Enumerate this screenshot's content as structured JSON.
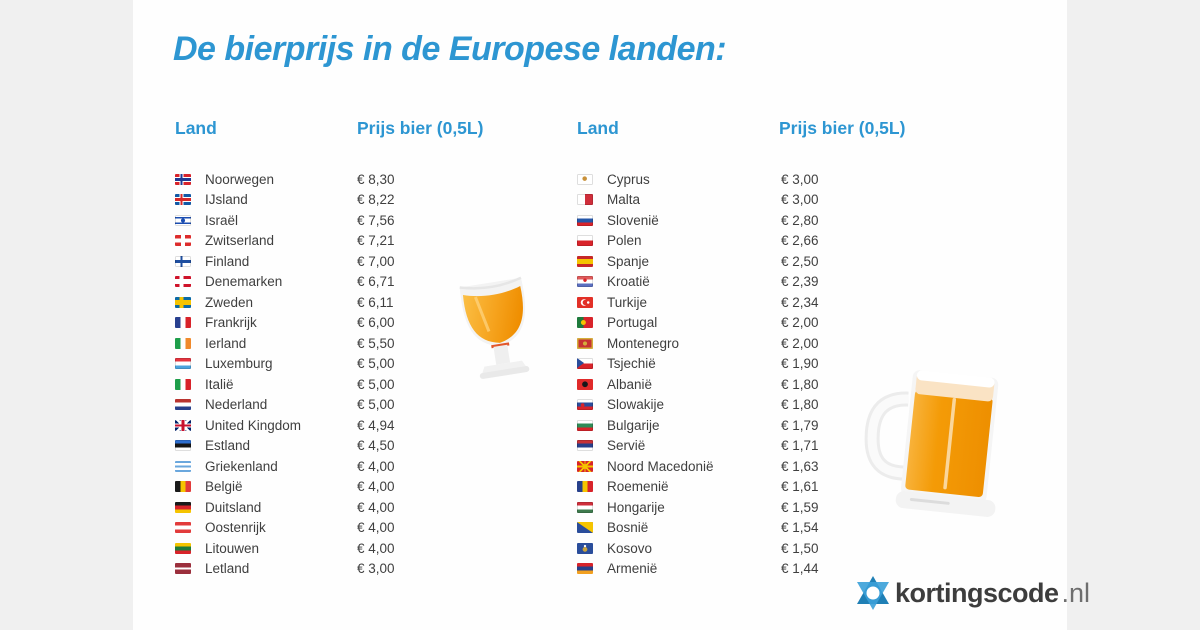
{
  "page": {
    "background_color": "#f0f0f0",
    "card_color": "#fefefe",
    "accent_color": "#2d96d2",
    "text_color": "#3f3f3f"
  },
  "title": "De bierprijs in de Europese landen:",
  "columns": [
    {
      "header_land": "Land",
      "header_price": "Prijs bier (0,5L)",
      "rows": [
        {
          "country": "Noorwegen",
          "price": "€ 8,30",
          "flag": {
            "type": "nordic",
            "bg": "#d8232a",
            "outline": "#ffffff",
            "inner": "#1f3a93"
          }
        },
        {
          "country": "IJsland",
          "price": "€ 8,22",
          "flag": {
            "type": "nordic",
            "bg": "#1259a6",
            "outline": "#ffffff",
            "inner": "#d72828"
          }
        },
        {
          "country": "Israël",
          "price": "€ 7,56",
          "flag": {
            "type": "h",
            "colors": [
              "#ffffff",
              "#1b4db1",
              "#ffffff",
              "#1b4db1",
              "#ffffff"
            ],
            "weights": [
              0.16,
              0.18,
              0.32,
              0.18,
              0.16
            ],
            "dots": [
              {
                "c": "#1b4db1",
                "x": "50%",
                "y": "50%",
                "r": 1.8
              }
            ],
            "edge": true
          }
        },
        {
          "country": "Zwitserland",
          "price": "€ 7,21",
          "flag": {
            "type": "plus",
            "bg": "#dd2c2c",
            "cross": "#ffffff"
          }
        },
        {
          "country": "Finland",
          "price": "€ 7,00",
          "flag": {
            "type": "nordic",
            "bg": "#ffffff",
            "outline": "#ffffff",
            "inner": "#1f4fa0",
            "edge": true
          }
        },
        {
          "country": "Denemarken",
          "price": "€ 6,71",
          "flag": {
            "type": "nordic",
            "bg": "#cf142b",
            "outline": "#ffffff",
            "inner": "#ffffff"
          }
        },
        {
          "country": "Zweden",
          "price": "€ 6,11",
          "flag": {
            "type": "nordic",
            "bg": "#0a6aa6",
            "outline": "#f5c400",
            "inner": "#f5c400"
          }
        },
        {
          "country": "Frankrijk",
          "price": "€ 6,00",
          "flag": {
            "type": "v",
            "colors": [
              "#28408f",
              "#ffffff",
              "#d8232a"
            ]
          }
        },
        {
          "country": "Ierland",
          "price": "€ 5,50",
          "flag": {
            "type": "v",
            "colors": [
              "#1e9e4a",
              "#ffffff",
              "#f08a2c"
            ]
          }
        },
        {
          "country": "Luxemburg",
          "price": "€ 5,00",
          "flag": {
            "type": "h",
            "colors": [
              "#e4343f",
              "#ffffff",
              "#4aa3dd"
            ],
            "edge": true
          }
        },
        {
          "country": "Italië",
          "price": "€ 5,00",
          "flag": {
            "type": "v",
            "colors": [
              "#1e9e4a",
              "#ffffff",
              "#d8232a"
            ]
          }
        },
        {
          "country": "Nederland",
          "price": "€ 5,00",
          "flag": {
            "type": "h",
            "colors": [
              "#b9342f",
              "#ffffff",
              "#27408b"
            ]
          }
        },
        {
          "country": "United Kingdom",
          "price": "€ 4,94",
          "flag": {
            "type": "uk"
          }
        },
        {
          "country": "Estland",
          "price": "€ 4,50",
          "flag": {
            "type": "h",
            "colors": [
              "#2e6fd0",
              "#161616",
              "#ffffff"
            ],
            "edge": true
          }
        },
        {
          "country": "Griekenland",
          "price": "€ 4,00",
          "flag": {
            "type": "h",
            "colors": [
              "#6aa7dd",
              "#ffffff",
              "#6aa7dd",
              "#ffffff",
              "#6aa7dd"
            ]
          }
        },
        {
          "country": "België",
          "price": "€ 4,00",
          "flag": {
            "type": "v",
            "colors": [
              "#1a1a1a",
              "#f5c400",
              "#e23b3b"
            ]
          }
        },
        {
          "country": "Duitsland",
          "price": "€ 4,00",
          "flag": {
            "type": "h",
            "colors": [
              "#1a1a1a",
              "#d8232a",
              "#f5c400"
            ]
          }
        },
        {
          "country": "Oostenrijk",
          "price": "€ 4,00",
          "flag": {
            "type": "h",
            "colors": [
              "#e23b3b",
              "#ffffff",
              "#e23b3b"
            ]
          }
        },
        {
          "country": "Litouwen",
          "price": "€ 4,00",
          "flag": {
            "type": "h",
            "colors": [
              "#f5c400",
              "#1e7a3c",
              "#d8232a"
            ]
          }
        },
        {
          "country": "Letland",
          "price": "€ 3,00",
          "flag": {
            "type": "h",
            "colors": [
              "#9b2f3c",
              "#ffffff",
              "#9b2f3c"
            ],
            "weights": [
              0.4,
              0.2,
              0.4
            ]
          }
        }
      ]
    },
    {
      "header_land": "Land",
      "header_price": "Prijs bier (0,5L)",
      "rows": [
        {
          "country": "Cyprus",
          "price": "€ 3,00",
          "flag": {
            "type": "solid",
            "color": "#ffffff",
            "dots": [
              {
                "c": "#c9913a",
                "x": "48%",
                "y": "42%",
                "r": 2
              }
            ],
            "edge": true
          }
        },
        {
          "country": "Malta",
          "price": "€ 3,00",
          "flag": {
            "type": "v",
            "colors": [
              "#ffffff",
              "#cf2e3b"
            ],
            "edge": true
          }
        },
        {
          "country": "Slovenië",
          "price": "€ 2,80",
          "flag": {
            "type": "h",
            "colors": [
              "#ffffff",
              "#2456a8",
              "#d8232a"
            ],
            "edge": true
          }
        },
        {
          "country": "Polen",
          "price": "€ 2,66",
          "flag": {
            "type": "h",
            "colors": [
              "#ffffff",
              "#d8232a"
            ],
            "edge": true
          }
        },
        {
          "country": "Spanje",
          "price": "€ 2,50",
          "flag": {
            "type": "h",
            "colors": [
              "#c62828",
              "#f5c400",
              "#c62828"
            ],
            "weights": [
              0.28,
              0.44,
              0.28
            ]
          }
        },
        {
          "country": "Kroatië",
          "price": "€ 2,39",
          "flag": {
            "type": "h",
            "colors": [
              "#e05a5a",
              "#ffffff",
              "#5a6fc0"
            ],
            "dots": [
              {
                "c": "#d8232a",
                "x": "50%",
                "y": "38%",
                "r": 1.5
              }
            ],
            "edge": true
          }
        },
        {
          "country": "Turkije",
          "price": "€ 2,34",
          "flag": {
            "type": "solid",
            "color": "#e23027",
            "dots": [
              {
                "c": "#ffffff",
                "x": "70%",
                "y": "50%",
                "r": 1
              },
              {
                "c": "#e23027",
                "x": "52%",
                "y": "50%",
                "r": 2.4
              },
              {
                "c": "#ffffff",
                "x": "44%",
                "y": "50%",
                "r": 3
              }
            ]
          }
        },
        {
          "country": "Portugal",
          "price": "€ 2,00",
          "flag": {
            "type": "v",
            "colors": [
              "#1e7a3c",
              "#d8232a"
            ],
            "weights": [
              0.4,
              0.6
            ],
            "dots": [
              {
                "c": "#f5c400",
                "x": "40%",
                "y": "50%",
                "r": 2.2
              }
            ]
          }
        },
        {
          "country": "Montenegro",
          "price": "€ 2,00",
          "flag": {
            "type": "solid",
            "color": "#c73232",
            "border": "#d3ae3b",
            "dots": [
              {
                "c": "#d3ae3b",
                "x": "50%",
                "y": "50%",
                "r": 1.8
              }
            ]
          }
        },
        {
          "country": "Tsjechië",
          "price": "€ 1,90",
          "flag": {
            "type": "h",
            "colors": [
              "#ffffff",
              "#d8232a"
            ],
            "tri": {
              "side": "left",
              "color": "#2a4d9b"
            },
            "edge": true
          }
        },
        {
          "country": "Albanië",
          "price": "€ 1,80",
          "flag": {
            "type": "solid",
            "color": "#e02a2a",
            "dots": [
              {
                "c": "#17171a",
                "x": "50%",
                "y": "48%",
                "r": 2.6
              }
            ]
          }
        },
        {
          "country": "Slowakije",
          "price": "€ 1,80",
          "flag": {
            "type": "h",
            "colors": [
              "#ffffff",
              "#2a4d9b",
              "#d8232a"
            ],
            "dots": [
              {
                "c": "#d8232a",
                "x": "35%",
                "y": "55%",
                "r": 1.6
              }
            ],
            "edge": true
          }
        },
        {
          "country": "Bulgarije",
          "price": "€ 1,79",
          "flag": {
            "type": "h",
            "colors": [
              "#ffffff",
              "#2e8b57",
              "#d8232a"
            ],
            "edge": true
          }
        },
        {
          "country": "Servië",
          "price": "€ 1,71",
          "flag": {
            "type": "h",
            "colors": [
              "#c73238",
              "#27408b",
              "#ffffff"
            ],
            "edge": true
          }
        },
        {
          "country": "Noord Macedonië",
          "price": "€ 1,63",
          "flag": {
            "type": "solid",
            "color": "#d8232a",
            "rays": "#f5c400",
            "dots": [
              {
                "c": "#f5c400",
                "x": "50%",
                "y": "50%",
                "r": 2.2
              }
            ]
          }
        },
        {
          "country": "Roemenië",
          "price": "€ 1,61",
          "flag": {
            "type": "v",
            "colors": [
              "#27408b",
              "#f5c400",
              "#d8232a"
            ]
          }
        },
        {
          "country": "Hongarije",
          "price": "€ 1,59",
          "flag": {
            "type": "h",
            "colors": [
              "#cf2e3b",
              "#ffffff",
              "#3e7a4d"
            ],
            "edge": true
          }
        },
        {
          "country": "Bosnië",
          "price": "€ 1,54",
          "flag": {
            "type": "solid",
            "color": "#2a4d9b",
            "tri": {
              "side": "right",
              "color": "#f5c400"
            }
          }
        },
        {
          "country": "Kosovo",
          "price": "€ 1,50",
          "flag": {
            "type": "solid",
            "color": "#2a4d9b",
            "dots": [
              {
                "c": "#ffffff",
                "x": "50%",
                "y": "28%",
                "r": 0.9
              },
              {
                "c": "#c9a23c",
                "x": "50%",
                "y": "58%",
                "r": 2.1
              }
            ]
          }
        },
        {
          "country": "Armenië",
          "price": "€ 1,44",
          "flag": {
            "type": "h",
            "colors": [
              "#d8232a",
              "#27408b",
              "#f2a020"
            ]
          }
        }
      ]
    }
  ],
  "illustrations": {
    "glass": "tilted-beer-goblet",
    "mug": "beer-mug",
    "beer_color": "#f49b07",
    "foam_color": "#fae3c4"
  },
  "logo": {
    "text": "kortingscode",
    "suffix": ".nl",
    "icon": "hexagram-star-icon",
    "icon_colors": [
      "#1f7fb5",
      "#3aa0d8"
    ]
  },
  "chart_data": {
    "type": "table",
    "title": "De bierprijs in de Europese landen:",
    "columns": [
      "Land",
      "Prijs bier (0,5L)"
    ],
    "unit": "EUR",
    "rows": [
      [
        "Noorwegen",
        8.3
      ],
      [
        "IJsland",
        8.22
      ],
      [
        "Israël",
        7.56
      ],
      [
        "Zwitserland",
        7.21
      ],
      [
        "Finland",
        7.0
      ],
      [
        "Denemarken",
        6.71
      ],
      [
        "Zweden",
        6.11
      ],
      [
        "Frankrijk",
        6.0
      ],
      [
        "Ierland",
        5.5
      ],
      [
        "Luxemburg",
        5.0
      ],
      [
        "Italië",
        5.0
      ],
      [
        "Nederland",
        5.0
      ],
      [
        "United Kingdom",
        4.94
      ],
      [
        "Estland",
        4.5
      ],
      [
        "Griekenland",
        4.0
      ],
      [
        "België",
        4.0
      ],
      [
        "Duitsland",
        4.0
      ],
      [
        "Oostenrijk",
        4.0
      ],
      [
        "Litouwen",
        4.0
      ],
      [
        "Letland",
        3.0
      ],
      [
        "Cyprus",
        3.0
      ],
      [
        "Malta",
        3.0
      ],
      [
        "Slovenië",
        2.8
      ],
      [
        "Polen",
        2.66
      ],
      [
        "Spanje",
        2.5
      ],
      [
        "Kroatië",
        2.39
      ],
      [
        "Turkije",
        2.34
      ],
      [
        "Portugal",
        2.0
      ],
      [
        "Montenegro",
        2.0
      ],
      [
        "Tsjechië",
        1.9
      ],
      [
        "Albanië",
        1.8
      ],
      [
        "Slowakije",
        1.8
      ],
      [
        "Bulgarije",
        1.79
      ],
      [
        "Servië",
        1.71
      ],
      [
        "Noord Macedonië",
        1.63
      ],
      [
        "Roemenië",
        1.61
      ],
      [
        "Hongarije",
        1.59
      ],
      [
        "Bosnië",
        1.54
      ],
      [
        "Kosovo",
        1.5
      ],
      [
        "Armenië",
        1.44
      ]
    ]
  }
}
